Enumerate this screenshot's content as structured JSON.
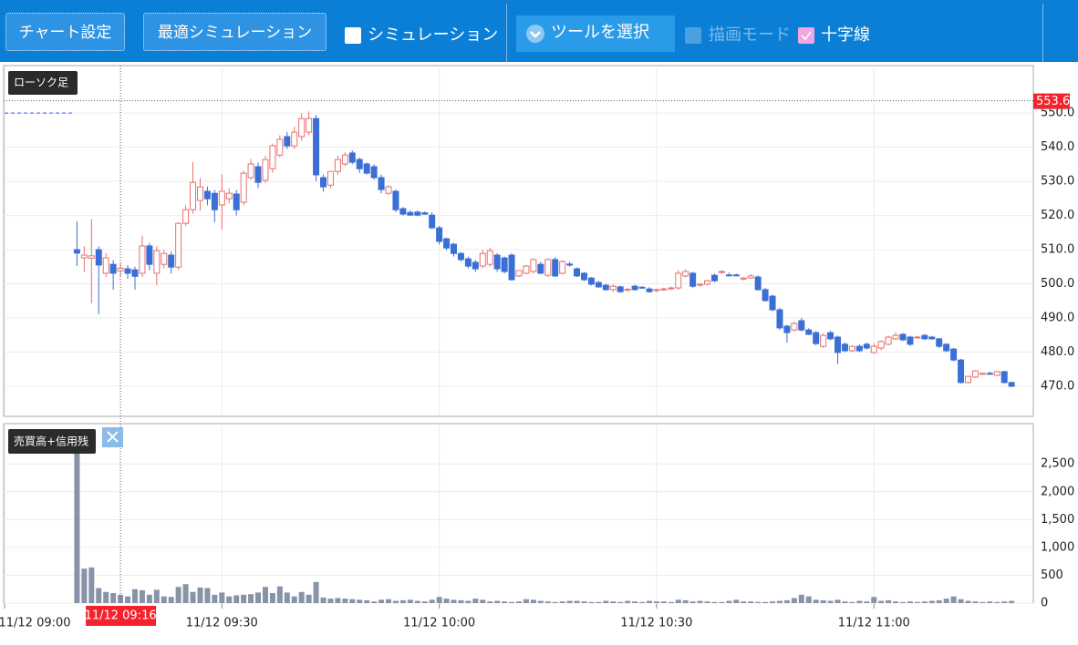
{
  "toolbar": {
    "chart_settings": "チャート設定",
    "optimize": "最適シミュレーション",
    "simulation": "シミュレーション",
    "tool_select": "ツールを選択",
    "draw_mode": "描画モード",
    "crosshair": "十字線"
  },
  "chart_data": {
    "type": "candlestick",
    "title": "ローソク足",
    "up_color": "#e8706e",
    "down_color": "#3b6fd6",
    "grid": true,
    "x": [
      "11/12 09:10",
      "11/12 09:11",
      "11/12 09:12",
      "11/12 09:13",
      "11/12 09:14",
      "11/12 09:15",
      "11/12 09:16",
      "11/12 09:17",
      "11/12 09:18",
      "11/12 09:19",
      "11/12 09:20",
      "11/12 09:21",
      "11/12 09:22",
      "11/12 09:23",
      "11/12 09:24",
      "11/12 09:25",
      "11/12 09:26",
      "11/12 09:27",
      "11/12 09:28",
      "11/12 09:29",
      "11/12 09:30",
      "11/12 09:31",
      "11/12 09:32",
      "11/12 09:33",
      "11/12 09:34",
      "11/12 09:35",
      "11/12 09:36",
      "11/12 09:37",
      "11/12 09:38",
      "11/12 09:39",
      "11/12 09:40",
      "11/12 09:41",
      "11/12 09:42",
      "11/12 09:43",
      "11/12 09:44",
      "11/12 09:45",
      "11/12 09:46",
      "11/12 09:47",
      "11/12 09:48",
      "11/12 09:49",
      "11/12 09:50",
      "11/12 09:51",
      "11/12 09:52",
      "11/12 09:53",
      "11/12 09:54",
      "11/12 09:55",
      "11/12 09:56",
      "11/12 09:57",
      "11/12 09:58",
      "11/12 09:59",
      "11/12 10:00",
      "11/12 10:01",
      "11/12 10:02",
      "11/12 10:03",
      "11/12 10:04",
      "11/12 10:05",
      "11/12 10:06",
      "11/12 10:07",
      "11/12 10:08",
      "11/12 10:09",
      "11/12 10:10",
      "11/12 10:11",
      "11/12 10:12",
      "11/12 10:13",
      "11/12 10:14",
      "11/12 10:15",
      "11/12 10:16",
      "11/12 10:17",
      "11/12 10:18",
      "11/12 10:19",
      "11/12 10:20",
      "11/12 10:21",
      "11/12 10:22",
      "11/12 10:23",
      "11/12 10:24",
      "11/12 10:25",
      "11/12 10:26",
      "11/12 10:27",
      "11/12 10:28",
      "11/12 10:29",
      "11/12 10:30",
      "11/12 10:31",
      "11/12 10:32",
      "11/12 10:33",
      "11/12 10:34",
      "11/12 10:35",
      "11/12 10:36",
      "11/12 10:37",
      "11/12 10:38",
      "11/12 10:39",
      "11/12 10:40",
      "11/12 10:41",
      "11/12 10:42",
      "11/12 10:43",
      "11/12 10:44",
      "11/12 10:45",
      "11/12 10:46",
      "11/12 10:47",
      "11/12 10:48",
      "11/12 10:49",
      "11/12 10:50",
      "11/12 10:51",
      "11/12 10:52",
      "11/12 10:53",
      "11/12 10:54",
      "11/12 10:55",
      "11/12 10:56",
      "11/12 10:57",
      "11/12 10:58",
      "11/12 10:59",
      "11/12 11:00",
      "11/12 11:01",
      "11/12 11:02",
      "11/12 11:03",
      "11/12 11:04",
      "11/12 11:05",
      "11/12 11:06",
      "11/12 11:07",
      "11/12 11:08",
      "11/12 11:09",
      "11/12 11:10",
      "11/12 11:11",
      "11/12 11:12",
      "11/12 11:13",
      "11/12 11:14",
      "11/12 11:15",
      "11/12 11:16",
      "11/12 11:17",
      "11/12 11:18",
      "11/12 11:19"
    ],
    "open": [
      510.0,
      507.6,
      507.5,
      510.0,
      503.1,
      505.7,
      503.8,
      504.4,
      504.1,
      503.1,
      511.1,
      503.1,
      505.7,
      508.4,
      504.9,
      517.7,
      521.7,
      524.4,
      527.1,
      526.5,
      523.1,
      524.9,
      526.3,
      523.9,
      531.1,
      534.3,
      530.3,
      533.7,
      537.7,
      543.1,
      540.4,
      543.1,
      544.4,
      548.4,
      531.1,
      528.9,
      532.9,
      535.1,
      538.3,
      536.4,
      535.1,
      534.3,
      531.1,
      526.5,
      527.1,
      522.0,
      520.9,
      521.0,
      520.8,
      520.1,
      516.4,
      513.2,
      511.6,
      508.9,
      507.3,
      506.3,
      505.2,
      505.7,
      508.4,
      507.6,
      508.4,
      502.3,
      503.1,
      503.6,
      505.7,
      502.5,
      507.1,
      503.1,
      505.8,
      504.4,
      503.1,
      501.7,
      500.4,
      499.6,
      498.3,
      499.1,
      498.1,
      499.3,
      499.0,
      498.5,
      498.2,
      498.4,
      498.7,
      498.8,
      502.3,
      503.1,
      499.6,
      499.9,
      502.5,
      503.4,
      502.6,
      502.6,
      501.4,
      501.7,
      502.0,
      498.3,
      496.4,
      492.4,
      487.6,
      486.5,
      489.2,
      486.5,
      485.7,
      481.7,
      485.7,
      484.4,
      482.3,
      480.4,
      481.7,
      482.3,
      479.9,
      481.2,
      482.3,
      483.9,
      485.2,
      484.4,
      484.4,
      484.9,
      484.4,
      483.9,
      482.3,
      480.9,
      477.7,
      471.1,
      472.7,
      473.5,
      473.8,
      473.2,
      474.3,
      471.1
    ],
    "high": [
      518.3,
      511.0,
      519.0,
      511.0,
      509.0,
      507.0,
      506.0,
      505.5,
      505.0,
      514.0,
      512.0,
      511.0,
      510.0,
      509.5,
      518.0,
      523.0,
      535.6,
      531.0,
      528.5,
      527.5,
      532.0,
      528.0,
      527.5,
      533.0,
      536.5,
      535.5,
      537.5,
      541.0,
      543.5,
      544.5,
      546.0,
      550.0,
      550.5,
      549.5,
      532.0,
      533.0,
      537.5,
      538.5,
      539.0,
      537.0,
      535.5,
      535.0,
      532.0,
      528.9,
      527.6,
      522.5,
      521.5,
      521.5,
      521.2,
      521.0,
      517.0,
      513.5,
      512.0,
      509.3,
      508.0,
      507.0,
      510.0,
      510.5,
      509.0,
      508.0,
      509.0,
      504.0,
      505.5,
      507.5,
      506.5,
      507.5,
      507.8,
      507.0,
      506.5,
      504.8,
      503.5,
      502.0,
      500.8,
      500.0,
      499.8,
      499.5,
      498.8,
      499.8,
      499.3,
      499.0,
      498.6,
      498.9,
      499.2,
      504.0,
      504.3,
      503.5,
      500.2,
      501.2,
      503.0,
      504.0,
      503.3,
      503.0,
      502.0,
      502.8,
      502.5,
      498.8,
      496.8,
      493.0,
      488.0,
      489.0,
      490.0,
      487.0,
      486.2,
      485.5,
      486.2,
      484.8,
      482.8,
      482.0,
      482.3,
      482.8,
      482.5,
      483.5,
      484.8,
      485.8,
      485.6,
      484.8,
      484.8,
      485.3,
      484.8,
      484.2,
      482.6,
      481.2,
      478.0,
      473.0,
      474.8,
      474.0,
      474.3,
      474.5,
      474.5,
      471.4
    ],
    "low": [
      505.2,
      503.5,
      494.3,
      491.1,
      502.0,
      498.3,
      502.0,
      501.5,
      498.3,
      502.0,
      504.0,
      499.6,
      504.5,
      503.0,
      504.0,
      517.0,
      520.5,
      521.5,
      523.0,
      518.0,
      515.9,
      523.5,
      520.0,
      523.0,
      530.5,
      528.0,
      529.5,
      532.5,
      537.0,
      539.5,
      539.5,
      542.0,
      543.5,
      530.0,
      527.0,
      528.0,
      532.0,
      534.5,
      535.0,
      532.5,
      532.0,
      530.5,
      526.5,
      526.0,
      521.0,
      520.0,
      520.0,
      519.8,
      520.2,
      516.0,
      511.5,
      509.8,
      508.0,
      506.5,
      504.5,
      503.5,
      504.5,
      505.0,
      503.5,
      503.0,
      501.0,
      502.0,
      502.8,
      503.0,
      502.8,
      502.0,
      502.0,
      502.8,
      505.0,
      502.0,
      500.8,
      499.5,
      498.8,
      498.0,
      497.6,
      497.4,
      497.7,
      498.0,
      498.6,
      497.4,
      497.6,
      497.9,
      498.2,
      498.3,
      501.8,
      498.8,
      499.2,
      499.5,
      500.5,
      503.0,
      502.2,
      502.2,
      501.0,
      501.5,
      498.0,
      494.8,
      492.0,
      486.5,
      482.8,
      486.0,
      486.0,
      485.0,
      482.0,
      481.2,
      483.5,
      476.5,
      480.0,
      480.0,
      480.0,
      480.8,
      479.5,
      480.5,
      482.0,
      483.5,
      483.2,
      481.8,
      484.0,
      483.5,
      483.6,
      481.2,
      480.0,
      477.3,
      470.8,
      470.8,
      472.4,
      473.3,
      473.4,
      473.0,
      470.8,
      469.8
    ],
    "close": [
      509.0,
      508.4,
      508.2,
      505.5,
      507.6,
      503.1,
      504.6,
      503.1,
      502.2,
      511.1,
      505.7,
      509.7,
      508.9,
      504.9,
      517.7,
      521.7,
      529.7,
      528.4,
      524.9,
      521.7,
      527.1,
      526.5,
      521.7,
      532.4,
      535.1,
      529.7,
      536.4,
      540.4,
      542.3,
      540.4,
      544.4,
      548.4,
      548.4,
      531.9,
      528.4,
      532.9,
      536.4,
      537.7,
      535.6,
      533.7,
      532.4,
      531.1,
      527.6,
      528.4,
      521.7,
      520.4,
      520.1,
      520.1,
      520.4,
      516.4,
      512.4,
      510.5,
      508.9,
      507.1,
      505.2,
      504.4,
      508.9,
      509.7,
      504.4,
      503.6,
      501.2,
      503.9,
      505.2,
      507.1,
      503.1,
      507.1,
      502.3,
      506.5,
      505.5,
      502.3,
      501.2,
      499.9,
      499.1,
      498.3,
      499.3,
      497.7,
      498.4,
      498.3,
      498.8,
      497.7,
      498.3,
      498.5,
      498.8,
      503.1,
      503.6,
      499.3,
      499.9,
      500.9,
      500.9,
      503.6,
      502.5,
      502.5,
      501.7,
      502.3,
      498.3,
      495.1,
      492.4,
      487.1,
      485.7,
      488.4,
      486.5,
      485.2,
      482.5,
      484.9,
      483.9,
      479.9,
      480.4,
      481.7,
      480.4,
      481.2,
      481.7,
      483.1,
      484.4,
      484.9,
      483.6,
      482.3,
      484.4,
      483.9,
      483.9,
      481.7,
      480.4,
      477.7,
      471.1,
      472.9,
      474.5,
      473.8,
      473.7,
      474.3,
      471.1,
      470.0
    ],
    "xlim": [
      "11/12 09:00",
      "11/12 11:22"
    ],
    "xticks": [
      "11/12 09:00",
      "11/12 09:30",
      "11/12 10:00",
      "11/12 10:30",
      "11/12 11:00"
    ],
    "ylim": [
      461.2,
      563.9
    ],
    "yticks": [
      {
        "value": 470,
        "label": "470.0"
      },
      {
        "value": 480,
        "label": "480.0"
      },
      {
        "value": 490,
        "label": "490.0"
      },
      {
        "value": 500,
        "label": "500.0"
      },
      {
        "value": 510,
        "label": "510.0"
      },
      {
        "value": 520,
        "label": "520.0"
      },
      {
        "value": 530,
        "label": "530.0"
      },
      {
        "value": 540,
        "label": "540.0"
      },
      {
        "value": 550,
        "label": "550.0"
      }
    ],
    "reference_line": 550,
    "crosshair": {
      "x": "11/12 09:16",
      "y": 553.6
    },
    "volume": {
      "title": "売買高+信用残",
      "color": "#8893a8",
      "values": [
        2700,
        620,
        640,
        270,
        200,
        180,
        150,
        120,
        250,
        230,
        150,
        240,
        120,
        110,
        290,
        340,
        200,
        280,
        270,
        150,
        190,
        120,
        140,
        150,
        160,
        190,
        290,
        180,
        300,
        190,
        120,
        200,
        150,
        380,
        100,
        80,
        90,
        80,
        70,
        60,
        50,
        30,
        60,
        70,
        40,
        50,
        60,
        40,
        30,
        60,
        110,
        80,
        60,
        50,
        40,
        80,
        60,
        30,
        40,
        30,
        20,
        30,
        70,
        60,
        40,
        30,
        20,
        30,
        40,
        40,
        30,
        20,
        20,
        40,
        30,
        20,
        40,
        30,
        20,
        40,
        30,
        30,
        20,
        60,
        50,
        30,
        40,
        30,
        20,
        20,
        40,
        60,
        30,
        30,
        20,
        20,
        30,
        40,
        50,
        90,
        150,
        120,
        60,
        50,
        40,
        60,
        30,
        20,
        40,
        30,
        110,
        40,
        50,
        30,
        20,
        30,
        20,
        30,
        40,
        50,
        80,
        120,
        70,
        40,
        30,
        20,
        30,
        20,
        30,
        40
      ],
      "ylim": [
        0,
        3224
      ],
      "yticks": [
        0,
        500,
        {
          "value": 1000,
          "label": "1,000"
        },
        {
          "value": 1500,
          "label": "1,500"
        },
        {
          "value": 2000,
          "label": "2,000"
        },
        {
          "value": 2500,
          "label": "2,500"
        }
      ]
    }
  }
}
